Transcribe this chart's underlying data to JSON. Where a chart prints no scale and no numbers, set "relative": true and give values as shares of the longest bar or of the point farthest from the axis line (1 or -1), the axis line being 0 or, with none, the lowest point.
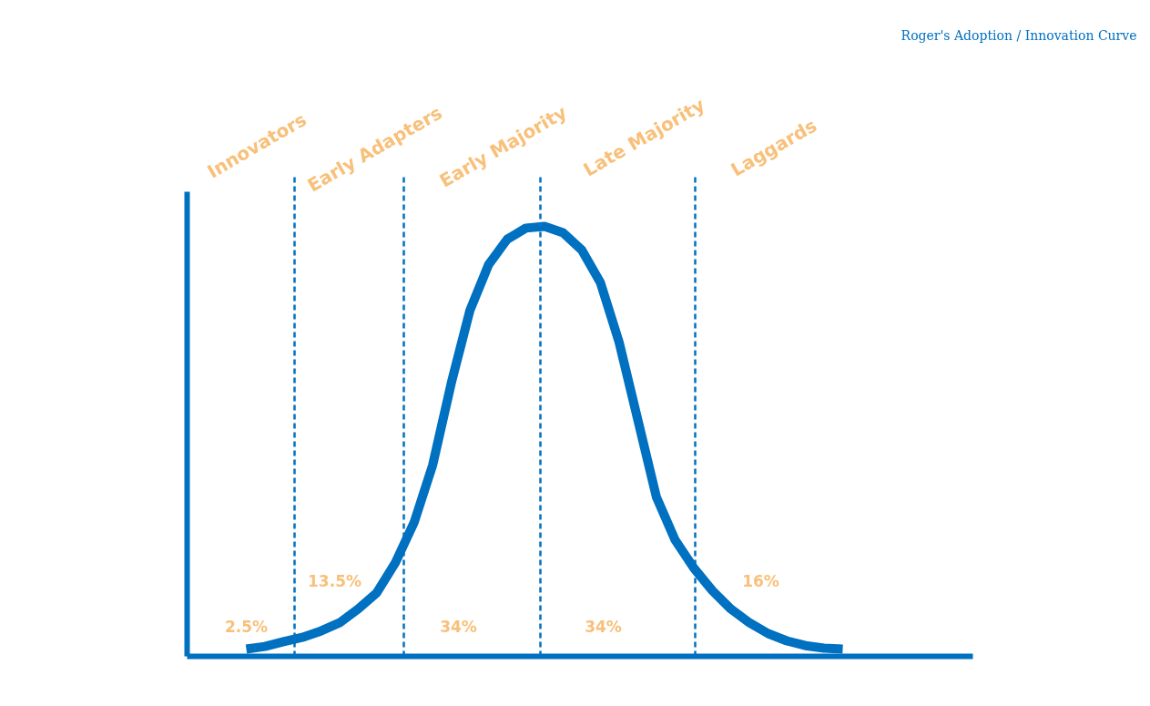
{
  "chart_data": {
    "type": "line",
    "relative": true,
    "title": "Roger's Adoption / Innovation Curve",
    "categories": [
      null,
      null,
      null,
      null,
      null,
      null,
      null,
      null,
      null,
      null,
      null,
      null,
      null,
      null,
      null,
      null,
      null,
      null,
      null,
      null,
      null,
      null,
      null,
      null,
      null,
      null,
      null,
      null,
      null,
      null,
      null,
      null,
      null
    ],
    "series": [
      {
        "color": "#0070c0",
        "values": [
          0.017,
          0.023,
          0.034,
          0.044,
          0.059,
          0.078,
          0.11,
          0.148,
          0.218,
          0.311,
          0.445,
          0.636,
          0.805,
          0.911,
          0.97,
          0.996,
          1,
          0.985,
          0.945,
          0.869,
          0.731,
          0.551,
          0.371,
          0.271,
          0.206,
          0.153,
          0.11,
          0.078,
          0.053,
          0.036,
          0.025,
          0.019,
          0.017
        ]
      }
    ],
    "annotations": [
      "Innovators",
      "Early Adapters",
      "Early Majority",
      "Late Majority",
      "Laggards",
      "2.5%",
      "13.5%",
      "34%",
      "34%",
      "16%"
    ]
  }
}
